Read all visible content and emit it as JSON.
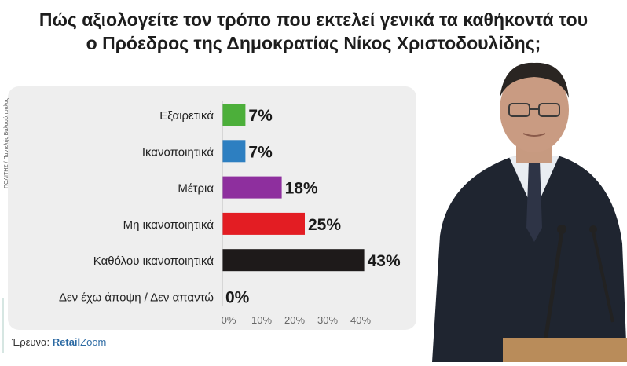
{
  "title": {
    "line1": "Πώς αξιολογείτε τον τρόπο που εκτελεί γενικά τα καθήκοντά του",
    "line2": "ο Πρόεδρος της Δημοκρατίας Νίκος Χριστοδουλίδης;"
  },
  "photo_credit": "ΠΟΛΙΤΗΣ / Παντελής Βαλασόπουλος",
  "source": {
    "label": "Έρευνα:",
    "brand_part1": "Retail",
    "brand_part2": "Zoom"
  },
  "photo": {
    "subject": "man in dark suit and tie speaking at podium with microphones"
  },
  "chart_data": {
    "type": "bar",
    "orientation": "horizontal",
    "categories": [
      "Εξαιρετικά",
      "Ικανοποιητικά",
      "Μέτρια",
      "Μη ικανοποιητικά",
      "Καθόλου ικανοποιητικά",
      "Δεν έχω άποψη / Δεν απαντώ"
    ],
    "values": [
      7,
      7,
      18,
      25,
      43,
      0
    ],
    "value_labels": [
      "7%",
      "7%",
      "18%",
      "25%",
      "43%",
      "0%"
    ],
    "colors": [
      "#4caf3a",
      "#2d7fc1",
      "#8e2f9e",
      "#e31d23",
      "#1e1a1a",
      "#cccccc"
    ],
    "xticks": [
      "0%",
      "10%",
      "20%",
      "30%",
      "40%"
    ],
    "xtick_values": [
      0,
      10,
      20,
      30,
      40
    ],
    "xlim": [
      0,
      43
    ],
    "title": "",
    "xlabel": "",
    "ylabel": "",
    "grid": false,
    "legend": "none"
  }
}
